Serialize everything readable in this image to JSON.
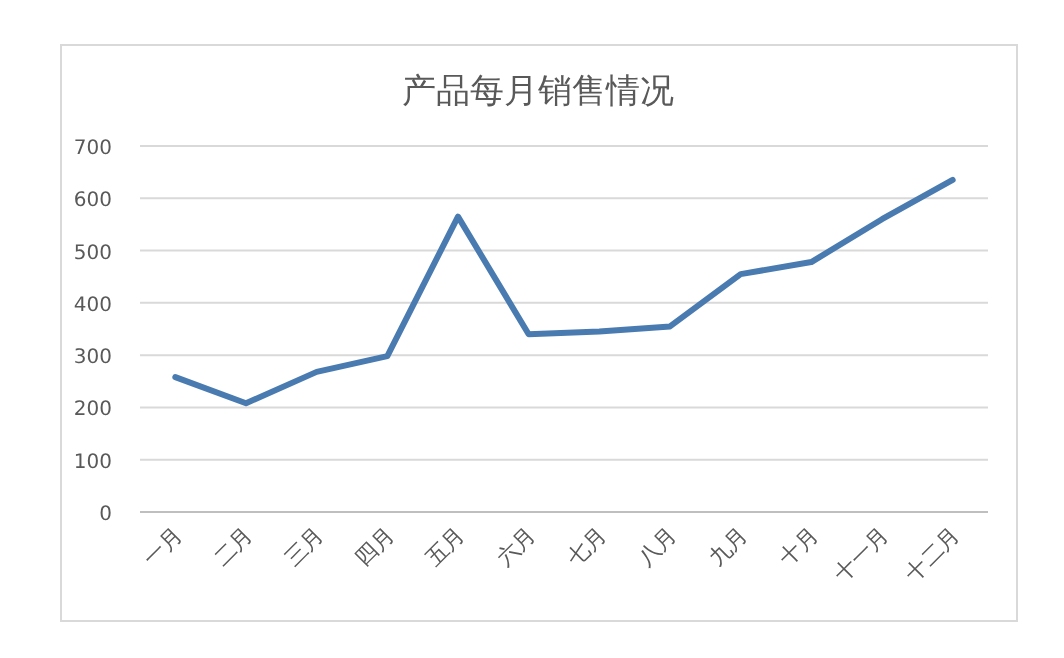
{
  "chart_data": {
    "type": "line",
    "title": "产品每月销售情况",
    "categories": [
      "一月",
      "二月",
      "三月",
      "四月",
      "五月",
      "六月",
      "七月",
      "八月",
      "九月",
      "十月",
      "十一月",
      "十二月"
    ],
    "values": [
      258,
      208,
      268,
      298,
      565,
      340,
      345,
      355,
      455,
      478,
      560,
      635
    ],
    "color": "#4a7bb0",
    "ylim": [
      0,
      700
    ],
    "yticks": [
      0,
      100,
      200,
      300,
      400,
      500,
      600,
      700
    ],
    "grid": "y"
  }
}
